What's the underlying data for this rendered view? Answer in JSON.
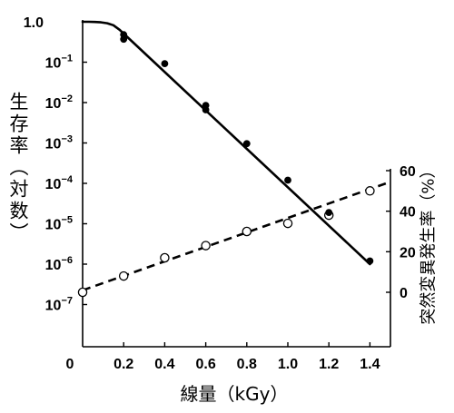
{
  "chart_data": {
    "type": "scatter",
    "grid": false,
    "xlabel": "線量（kGy）",
    "ylabel_left": "生存率（対数）",
    "ylabel_right": "突然変異発生率（%）",
    "x_axis": {
      "xlim": [
        0,
        1.5
      ],
      "ticks": [
        {
          "value": 0,
          "label": "0"
        },
        {
          "value": 0.2,
          "label": "0.2"
        },
        {
          "value": 0.4,
          "label": "0.4"
        },
        {
          "value": 0.6,
          "label": "0.6"
        },
        {
          "value": 0.8,
          "label": "0.8"
        },
        {
          "value": 1.0,
          "label": "1.0"
        },
        {
          "value": 1.2,
          "label": "1.2"
        },
        {
          "value": 1.4,
          "label": "1.4"
        }
      ]
    },
    "y_left_axis": {
      "scale": "log",
      "ylim": [
        1e-08,
        1.0
      ],
      "ticks": [
        {
          "value": 1.0,
          "label": "1.0"
        },
        {
          "value": 0.1,
          "base": "10",
          "exponent": "−1"
        },
        {
          "value": 0.01,
          "base": "10",
          "exponent": "−2"
        },
        {
          "value": 0.001,
          "base": "10",
          "exponent": "−3"
        },
        {
          "value": 0.0001,
          "base": "10",
          "exponent": "−4"
        },
        {
          "value": 1e-05,
          "base": "10",
          "exponent": "−5"
        },
        {
          "value": 1e-06,
          "base": "10",
          "exponent": "−6"
        },
        {
          "value": 1e-07,
          "base": "10",
          "exponent": "−7"
        }
      ]
    },
    "y_right_axis": {
      "scale": "linear",
      "ylim": [
        0,
        60
      ],
      "ticks": [
        {
          "value": 0,
          "label": "0"
        },
        {
          "value": 20,
          "label": "20"
        },
        {
          "value": 40,
          "label": "40"
        },
        {
          "value": 60,
          "label": "60"
        }
      ]
    },
    "series": [
      {
        "axis": "left",
        "marker": "filled",
        "color": "#000000",
        "points": [
          [
            0.2,
            0.48
          ],
          [
            0.2,
            0.37
          ],
          [
            0.4,
            0.092
          ],
          [
            0.6,
            0.0085
          ],
          [
            0.6,
            0.0066
          ],
          [
            0.8,
            0.00096
          ],
          [
            1.0,
            0.00012
          ],
          [
            1.2,
            1.9e-05
          ],
          [
            1.4,
            1.2e-06
          ]
        ],
        "fit": {
          "style": "solid",
          "points": [
            [
              0,
              1.0
            ],
            [
              0.03,
              0.998
            ],
            [
              0.06,
              0.99
            ],
            [
              0.09,
              0.97
            ],
            [
              0.12,
              0.92
            ],
            [
              0.15,
              0.82
            ],
            [
              0.18,
              0.635
            ],
            [
              0.2,
              0.51
            ],
            [
              1.4,
              1e-06
            ]
          ]
        }
      },
      {
        "axis": "right",
        "marker": "open",
        "color": "#000000",
        "points": [
          [
            0,
            0
          ],
          [
            0.2,
            8
          ],
          [
            0.4,
            17
          ],
          [
            0.6,
            23
          ],
          [
            0.8,
            30
          ],
          [
            1.0,
            34
          ],
          [
            1.2,
            38
          ],
          [
            1.4,
            50
          ]
        ],
        "fit": {
          "style": "dashed",
          "points": [
            [
              0,
              1
            ],
            [
              1.5,
              54.5
            ]
          ]
        }
      }
    ]
  }
}
